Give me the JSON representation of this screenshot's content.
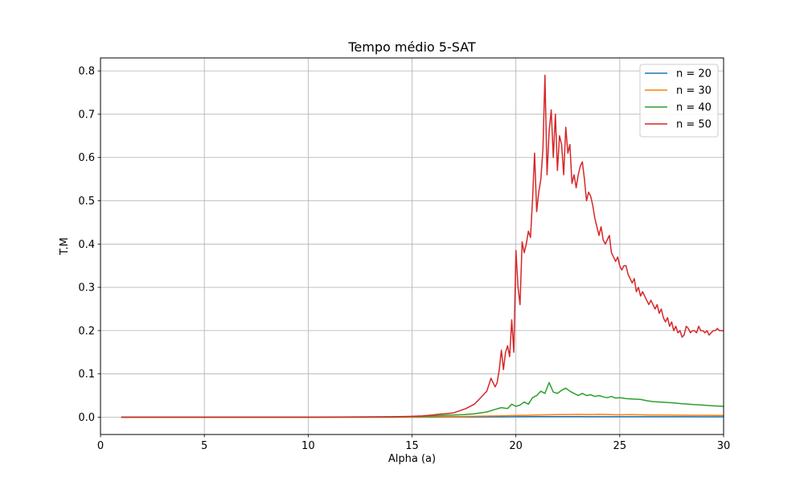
{
  "chart_data": {
    "type": "line",
    "title": "Tempo médio 5-SAT",
    "xlabel": "Alpha (a)",
    "ylabel": "T.M",
    "xlim": [
      0,
      30
    ],
    "ylim": [
      -0.04,
      0.83
    ],
    "xticks": [
      0,
      5,
      10,
      15,
      20,
      25,
      30
    ],
    "xtick_labels": [
      "0",
      "5",
      "10",
      "15",
      "20",
      "25",
      "30"
    ],
    "yticks": [
      0.0,
      0.1,
      0.2,
      0.3,
      0.4,
      0.5,
      0.6,
      0.7,
      0.8
    ],
    "ytick_labels": [
      "0.0",
      "0.1",
      "0.2",
      "0.3",
      "0.4",
      "0.5",
      "0.6",
      "0.7",
      "0.8"
    ],
    "grid": true,
    "legend_position": "top-right",
    "series": [
      {
        "name": "n = 20",
        "color": "#1f77b4",
        "x": [
          1,
          5,
          10,
          14,
          15,
          16,
          17,
          18,
          19,
          20,
          21,
          22,
          23,
          24,
          25,
          26,
          27,
          28,
          29,
          30
        ],
        "y": [
          0.0,
          0.0,
          0.0,
          0.0,
          0.0,
          0.0,
          0.0003,
          0.0005,
          0.0008,
          0.001,
          0.0012,
          0.0012,
          0.0012,
          0.0011,
          0.0011,
          0.001,
          0.001,
          0.001,
          0.0009,
          0.0009
        ]
      },
      {
        "name": "n = 30",
        "color": "#ff7f0e",
        "x": [
          1,
          5,
          10,
          14,
          15,
          16,
          17,
          18,
          19,
          19.5,
          20,
          20.5,
          21,
          21.5,
          22,
          22.5,
          23,
          23.5,
          24,
          24.5,
          25,
          25.5,
          26,
          26.5,
          27,
          27.5,
          28,
          28.5,
          29,
          29.5,
          30
        ],
        "y": [
          0.0,
          0.0,
          0.0,
          0.0,
          0.0005,
          0.001,
          0.0015,
          0.002,
          0.003,
          0.0035,
          0.004,
          0.0045,
          0.005,
          0.0055,
          0.006,
          0.006,
          0.0065,
          0.006,
          0.0065,
          0.006,
          0.0055,
          0.006,
          0.0055,
          0.005,
          0.005,
          0.0048,
          0.0046,
          0.0045,
          0.0044,
          0.0042,
          0.004
        ]
      },
      {
        "name": "n = 40",
        "color": "#2ca02c",
        "x": [
          1,
          5,
          10,
          14,
          15,
          15.5,
          16,
          16.5,
          17,
          17.5,
          18,
          18.3,
          18.6,
          19,
          19.3,
          19.6,
          19.8,
          20,
          20.2,
          20.4,
          20.6,
          20.8,
          21,
          21.2,
          21.4,
          21.6,
          21.8,
          22,
          22.2,
          22.4,
          22.6,
          22.8,
          23,
          23.2,
          23.4,
          23.6,
          23.8,
          24,
          24.2,
          24.4,
          24.6,
          24.8,
          25,
          25.3,
          25.6,
          26,
          26.3,
          26.6,
          27,
          27.3,
          27.6,
          28,
          28.3,
          28.6,
          29,
          29.3,
          29.6,
          30
        ],
        "y": [
          0.0,
          0.0,
          0.0,
          0.0005,
          0.0015,
          0.002,
          0.003,
          0.004,
          0.005,
          0.006,
          0.008,
          0.01,
          0.012,
          0.018,
          0.022,
          0.02,
          0.03,
          0.025,
          0.028,
          0.035,
          0.03,
          0.045,
          0.05,
          0.06,
          0.055,
          0.08,
          0.058,
          0.055,
          0.062,
          0.067,
          0.06,
          0.055,
          0.05,
          0.055,
          0.05,
          0.052,
          0.048,
          0.05,
          0.047,
          0.045,
          0.048,
          0.044,
          0.045,
          0.043,
          0.042,
          0.041,
          0.038,
          0.036,
          0.035,
          0.034,
          0.033,
          0.031,
          0.03,
          0.029,
          0.028,
          0.027,
          0.026,
          0.025
        ]
      },
      {
        "name": "n = 50",
        "color": "#d62728",
        "x": [
          1,
          5,
          10,
          14,
          15,
          15.5,
          16,
          16.3,
          16.6,
          17,
          17.3,
          17.6,
          18,
          18.2,
          18.4,
          18.6,
          18.8,
          19,
          19.1,
          19.2,
          19.3,
          19.4,
          19.5,
          19.6,
          19.7,
          19.8,
          19.9,
          20,
          20.1,
          20.2,
          20.3,
          20.4,
          20.5,
          20.6,
          20.7,
          20.8,
          20.9,
          21,
          21.1,
          21.2,
          21.3,
          21.4,
          21.5,
          21.6,
          21.7,
          21.8,
          21.9,
          22,
          22.1,
          22.2,
          22.3,
          22.4,
          22.5,
          22.6,
          22.7,
          22.8,
          22.9,
          23,
          23.1,
          23.2,
          23.3,
          23.4,
          23.5,
          23.6,
          23.7,
          23.8,
          23.9,
          24,
          24.1,
          24.2,
          24.3,
          24.4,
          24.5,
          24.6,
          24.7,
          24.8,
          24.9,
          25,
          25.1,
          25.2,
          25.3,
          25.4,
          25.5,
          25.6,
          25.7,
          25.8,
          25.9,
          26,
          26.1,
          26.2,
          26.3,
          26.4,
          26.5,
          26.6,
          26.7,
          26.8,
          26.9,
          27,
          27.1,
          27.2,
          27.3,
          27.4,
          27.5,
          27.6,
          27.7,
          27.8,
          27.9,
          28,
          28.1,
          28.2,
          28.3,
          28.4,
          28.5,
          28.6,
          28.7,
          28.8,
          28.9,
          29,
          29.1,
          29.2,
          29.3,
          29.4,
          29.5,
          29.6,
          29.7,
          29.8,
          29.9,
          30
        ],
        "y": [
          0.0,
          0.0,
          0.0,
          0.001,
          0.002,
          0.003,
          0.005,
          0.007,
          0.008,
          0.01,
          0.015,
          0.02,
          0.03,
          0.04,
          0.05,
          0.06,
          0.09,
          0.07,
          0.08,
          0.11,
          0.155,
          0.11,
          0.15,
          0.165,
          0.14,
          0.225,
          0.15,
          0.385,
          0.3,
          0.26,
          0.405,
          0.38,
          0.4,
          0.43,
          0.415,
          0.5,
          0.61,
          0.475,
          0.52,
          0.55,
          0.62,
          0.79,
          0.56,
          0.66,
          0.71,
          0.6,
          0.7,
          0.57,
          0.65,
          0.63,
          0.56,
          0.67,
          0.61,
          0.63,
          0.54,
          0.56,
          0.53,
          0.56,
          0.58,
          0.59,
          0.55,
          0.5,
          0.52,
          0.51,
          0.49,
          0.46,
          0.44,
          0.42,
          0.44,
          0.41,
          0.4,
          0.41,
          0.42,
          0.38,
          0.37,
          0.36,
          0.37,
          0.35,
          0.34,
          0.35,
          0.35,
          0.33,
          0.32,
          0.31,
          0.32,
          0.29,
          0.3,
          0.28,
          0.29,
          0.28,
          0.27,
          0.26,
          0.27,
          0.26,
          0.25,
          0.26,
          0.24,
          0.25,
          0.23,
          0.22,
          0.23,
          0.21,
          0.22,
          0.2,
          0.21,
          0.195,
          0.2,
          0.185,
          0.19,
          0.21,
          0.205,
          0.195,
          0.2,
          0.2,
          0.195,
          0.21,
          0.2,
          0.2,
          0.195,
          0.2,
          0.19,
          0.195,
          0.2,
          0.2,
          0.205,
          0.2,
          0.2,
          0.2
        ]
      }
    ]
  }
}
